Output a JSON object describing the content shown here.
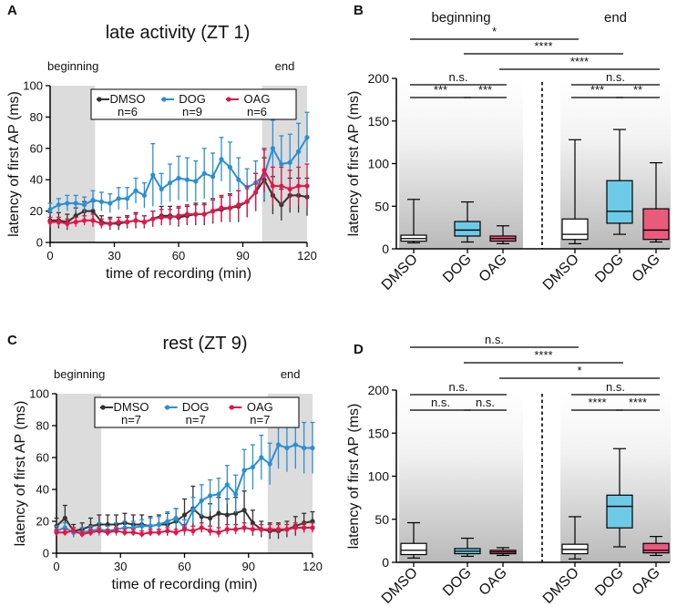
{
  "colors": {
    "dmso": "#333333",
    "dog": "#2b8fd4",
    "oag": "#e0174a",
    "dog_box": "#6dcbe8",
    "oag_box": "#ea5a7c",
    "shade": "#dcdcdc"
  },
  "chart_data": [
    {
      "type": "line",
      "panel": "A",
      "title": "late activity (ZT 1)",
      "xlabel": "time of recording (min)",
      "ylabel": "latency of first AP (ms)",
      "xlim": [
        0,
        120
      ],
      "ylim": [
        0,
        100
      ],
      "xticks": [
        0,
        30,
        60,
        90,
        120
      ],
      "yticks": [
        0,
        20,
        40,
        60,
        80,
        100
      ],
      "shaded_windows": [
        {
          "label": "beginning",
          "x_range": [
            0,
            21
          ]
        },
        {
          "label": "end",
          "x_range": [
            99,
            120
          ]
        }
      ],
      "x": [
        0,
        4,
        8,
        12,
        16,
        20,
        24,
        28,
        32,
        36,
        40,
        44,
        48,
        52,
        56,
        60,
        64,
        68,
        72,
        76,
        80,
        84,
        88,
        92,
        96,
        100,
        104,
        108,
        112,
        116,
        120
      ],
      "series": [
        {
          "name": "DMSO",
          "n_label": "n=6",
          "values": [
            14,
            14,
            13,
            17,
            20,
            20,
            13,
            12,
            12,
            13,
            14,
            13,
            15,
            17,
            17,
            16,
            17,
            18,
            18,
            20,
            21,
            22,
            23,
            26,
            32,
            40,
            30,
            24,
            30,
            30,
            29
          ],
          "errors": [
            5,
            5,
            5,
            5,
            6,
            6,
            4,
            4,
            4,
            4,
            5,
            4,
            5,
            6,
            6,
            6,
            6,
            7,
            7,
            8,
            8,
            9,
            10,
            10,
            12,
            14,
            12,
            10,
            11,
            11,
            12
          ]
        },
        {
          "name": "DOG",
          "n_label": "n=9",
          "values": [
            21,
            24,
            25,
            25,
            24,
            27,
            26,
            25,
            28,
            28,
            33,
            30,
            43,
            34,
            38,
            41,
            40,
            39,
            44,
            42,
            53,
            48,
            40,
            35,
            38,
            43,
            60,
            50,
            51,
            58,
            67
          ],
          "errors": [
            4,
            4,
            5,
            5,
            5,
            6,
            6,
            6,
            7,
            7,
            8,
            8,
            20,
            10,
            12,
            14,
            14,
            13,
            16,
            15,
            14,
            16,
            14,
            12,
            14,
            16,
            18,
            18,
            18,
            18,
            16
          ]
        },
        {
          "name": "OAG",
          "n_label": "n=6",
          "values": [
            13,
            13,
            12,
            13,
            14,
            14,
            12,
            12,
            13,
            13,
            14,
            13,
            15,
            16,
            16,
            17,
            18,
            18,
            18,
            20,
            22,
            22,
            24,
            26,
            32,
            46,
            36,
            36,
            34,
            36,
            36
          ],
          "errors": [
            3,
            3,
            3,
            3,
            3,
            4,
            3,
            3,
            3,
            3,
            4,
            4,
            5,
            5,
            5,
            6,
            6,
            6,
            6,
            7,
            8,
            8,
            9,
            10,
            12,
            14,
            12,
            12,
            12,
            12,
            14
          ]
        }
      ]
    },
    {
      "type": "box",
      "panel": "B",
      "ylabel": "latency of first AP (ms)",
      "ylim": [
        0,
        200
      ],
      "yticks": [
        0,
        50,
        100,
        150,
        200
      ],
      "group_labels": [
        "beginning",
        "end"
      ],
      "categories": [
        "DMSO",
        "DOG",
        "OAG",
        "DMSO",
        "DOG",
        "OAG"
      ],
      "boxes": [
        {
          "group": "beginning",
          "name": "DMSO",
          "min": 7,
          "q1": 9,
          "median": 12,
          "q3": 16,
          "max": 58
        },
        {
          "group": "beginning",
          "name": "DOG",
          "min": 8,
          "q1": 15,
          "median": 22,
          "q3": 32,
          "max": 55
        },
        {
          "group": "beginning",
          "name": "OAG",
          "min": 6,
          "q1": 9,
          "median": 12,
          "q3": 15,
          "max": 27
        },
        {
          "group": "end",
          "name": "DMSO",
          "min": 6,
          "q1": 11,
          "median": 17,
          "q3": 35,
          "max": 128
        },
        {
          "group": "end",
          "name": "DOG",
          "min": 17,
          "q1": 30,
          "median": 44,
          "q3": 80,
          "max": 140
        },
        {
          "group": "end",
          "name": "OAG",
          "min": 8,
          "q1": 11,
          "median": 22,
          "q3": 47,
          "max": 101
        }
      ],
      "comparisons": [
        {
          "from": 0,
          "to": 3,
          "label": "*"
        },
        {
          "from": 1,
          "to": 4,
          "label": "****"
        },
        {
          "from": 2,
          "to": 5,
          "label": "****"
        },
        {
          "from": 0,
          "to": 2,
          "label": "n.s."
        },
        {
          "from": 3,
          "to": 5,
          "label": "n.s."
        },
        {
          "from": 0,
          "to": 1,
          "label": "***"
        },
        {
          "from": 1,
          "to": 2,
          "label": "***"
        },
        {
          "from": 3,
          "to": 4,
          "label": "***"
        },
        {
          "from": 4,
          "to": 5,
          "label": "**"
        }
      ]
    },
    {
      "type": "line",
      "panel": "C",
      "title": "rest (ZT 9)",
      "xlabel": "time of recording (min)",
      "ylabel": "latency of first AP (ms)",
      "xlim": [
        0,
        120
      ],
      "ylim": [
        0,
        100
      ],
      "xticks": [
        0,
        30,
        60,
        90,
        120
      ],
      "yticks": [
        0,
        20,
        40,
        60,
        80,
        100
      ],
      "shaded_windows": [
        {
          "label": "beginning",
          "x_range": [
            0,
            21
          ]
        },
        {
          "label": "end",
          "x_range": [
            99,
            120
          ]
        }
      ],
      "x": [
        0,
        4,
        8,
        12,
        16,
        20,
        24,
        28,
        32,
        36,
        40,
        44,
        48,
        52,
        56,
        60,
        64,
        68,
        72,
        76,
        80,
        84,
        88,
        92,
        96,
        100,
        104,
        108,
        112,
        116,
        120
      ],
      "series": [
        {
          "name": "DMSO",
          "n_label": "n=7",
          "values": [
            17,
            22,
            14,
            15,
            17,
            18,
            18,
            18,
            19,
            18,
            18,
            17,
            18,
            18,
            20,
            24,
            28,
            23,
            22,
            25,
            24,
            25,
            27,
            19,
            15,
            14,
            14,
            15,
            17,
            19,
            20
          ],
          "errors": [
            5,
            8,
            4,
            4,
            5,
            6,
            6,
            6,
            6,
            6,
            6,
            6,
            6,
            7,
            8,
            10,
            14,
            10,
            9,
            10,
            10,
            10,
            12,
            8,
            5,
            5,
            5,
            5,
            6,
            6,
            6
          ]
        },
        {
          "name": "DOG",
          "n_label": "n=7",
          "values": [
            14,
            16,
            13,
            13,
            14,
            15,
            14,
            15,
            16,
            16,
            17,
            17,
            18,
            20,
            22,
            16,
            27,
            33,
            36,
            37,
            43,
            37,
            52,
            54,
            60,
            56,
            68,
            66,
            68,
            66,
            66
          ],
          "errors": [
            3,
            3,
            3,
            3,
            3,
            4,
            3,
            4,
            4,
            4,
            4,
            5,
            5,
            6,
            6,
            5,
            8,
            10,
            10,
            10,
            12,
            12,
            13,
            14,
            14,
            13,
            15,
            15,
            15,
            16,
            16
          ]
        },
        {
          "name": "OAG",
          "n_label": "n=7",
          "values": [
            13,
            13,
            14,
            12,
            13,
            14,
            13,
            14,
            13,
            13,
            12,
            13,
            13,
            14,
            13,
            15,
            14,
            16,
            14,
            13,
            15,
            15,
            16,
            15,
            15,
            15,
            15,
            15,
            16,
            16,
            16
          ],
          "errors": [
            2,
            2,
            2,
            2,
            2,
            2,
            2,
            2,
            2,
            2,
            2,
            2,
            2,
            2,
            2,
            3,
            3,
            3,
            3,
            3,
            3,
            3,
            3,
            3,
            3,
            3,
            3,
            3,
            3,
            3,
            3
          ]
        }
      ]
    },
    {
      "type": "box",
      "panel": "D",
      "ylabel": "latency of first AP (ms)",
      "ylim": [
        0,
        200
      ],
      "yticks": [
        0,
        50,
        100,
        150,
        200
      ],
      "group_labels": [
        "",
        ""
      ],
      "categories": [
        "DMSO",
        "DOG",
        "OAG",
        "DMSO",
        "DOG",
        "OAG"
      ],
      "boxes": [
        {
          "group": "beginning",
          "name": "DMSO",
          "min": 5,
          "q1": 9,
          "median": 14,
          "q3": 22,
          "max": 46
        },
        {
          "group": "beginning",
          "name": "DOG",
          "min": 7,
          "q1": 10,
          "median": 13,
          "q3": 16,
          "max": 28
        },
        {
          "group": "beginning",
          "name": "OAG",
          "min": 8,
          "q1": 10,
          "median": 12,
          "q3": 14,
          "max": 17
        },
        {
          "group": "end",
          "name": "DMSO",
          "min": 4,
          "q1": 10,
          "median": 15,
          "q3": 21,
          "max": 53
        },
        {
          "group": "end",
          "name": "DOG",
          "min": 18,
          "q1": 40,
          "median": 65,
          "q3": 78,
          "max": 132
        },
        {
          "group": "end",
          "name": "OAG",
          "min": 8,
          "q1": 11,
          "median": 14,
          "q3": 22,
          "max": 30
        }
      ],
      "comparisons": [
        {
          "from": 0,
          "to": 3,
          "label": "n.s."
        },
        {
          "from": 1,
          "to": 4,
          "label": "****"
        },
        {
          "from": 2,
          "to": 5,
          "label": "*"
        },
        {
          "from": 0,
          "to": 2,
          "label": "n.s."
        },
        {
          "from": 3,
          "to": 5,
          "label": "n.s."
        },
        {
          "from": 0,
          "to": 1,
          "label": "n.s."
        },
        {
          "from": 1,
          "to": 2,
          "label": "n.s."
        },
        {
          "from": 3,
          "to": 4,
          "label": "****"
        },
        {
          "from": 4,
          "to": 5,
          "label": "****"
        }
      ]
    }
  ]
}
